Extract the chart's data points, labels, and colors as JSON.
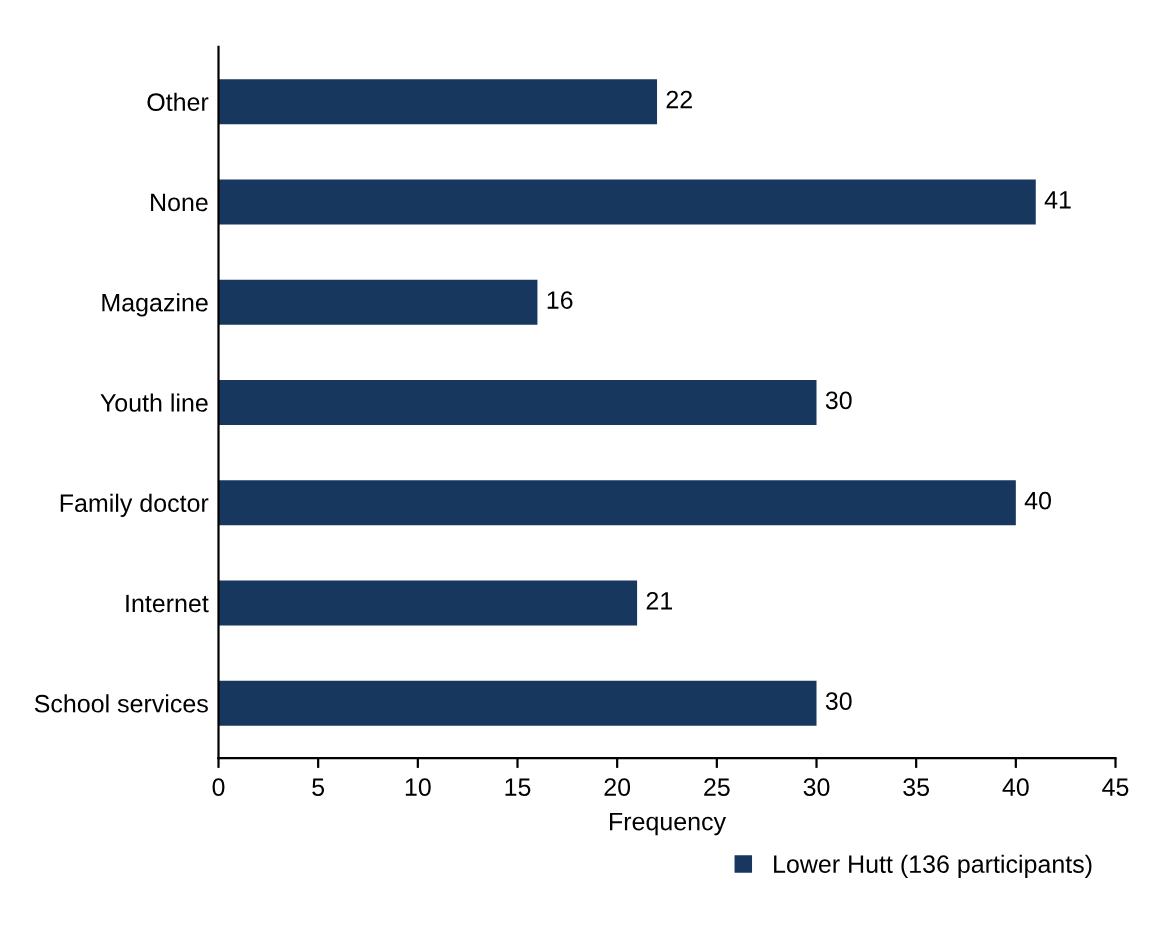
{
  "chart_data": {
    "type": "bar",
    "orientation": "horizontal",
    "xlabel": "Frequency",
    "categories": [
      "Other",
      "None",
      "Magazine",
      "Youth line",
      "Family doctor",
      "Internet",
      "School services"
    ],
    "series": [
      {
        "name": "Lower Hutt (136 participants)",
        "color": "#17375e",
        "values": [
          22,
          41,
          16,
          30,
          40,
          21,
          30
        ]
      }
    ],
    "xlim": [
      0,
      45
    ],
    "xticks": [
      0,
      5,
      10,
      15,
      20,
      25,
      30,
      35,
      40,
      45
    ],
    "data_labels": true,
    "grid": false,
    "legend": "bottom right"
  }
}
